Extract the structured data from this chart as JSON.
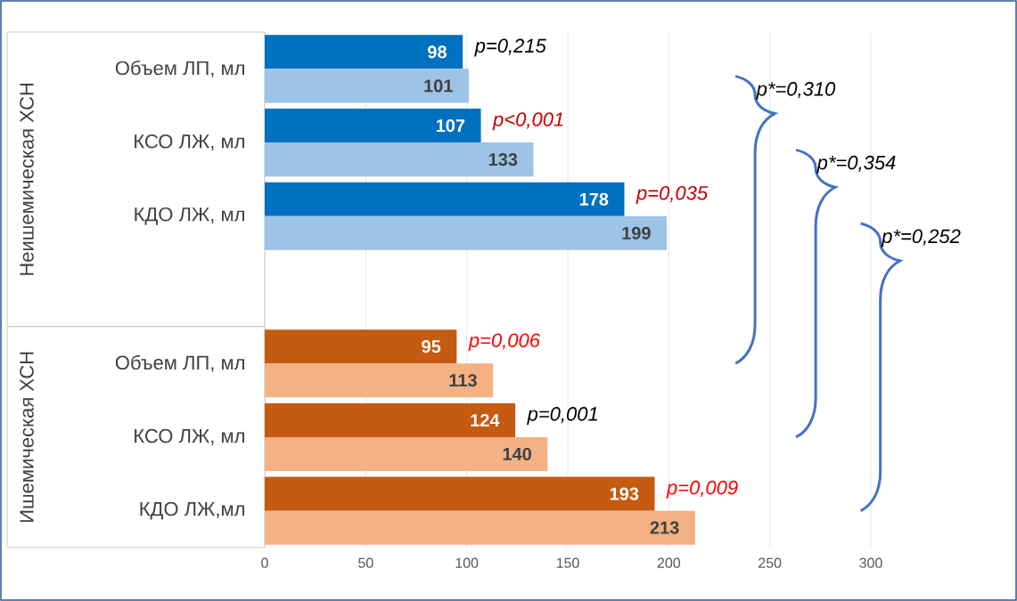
{
  "chart_data": {
    "type": "bar",
    "orientation": "horizontal",
    "categories": [
      "Объем ЛП, мл",
      "КСО ЛЖ, мл",
      "КДО ЛЖ, мл",
      null,
      "Объем ЛП, мл",
      "КСО ЛЖ, мл",
      "КДО ЛЖ,мл"
    ],
    "series": [
      {
        "colors": [
          "#0070c0",
          "#0070c0",
          "#0070c0",
          null,
          "#c55a11",
          "#c55a11",
          "#c55a11"
        ],
        "values": [
          98,
          107,
          178,
          null,
          95,
          124,
          193
        ]
      },
      {
        "colors": [
          "#9dc3e6",
          "#9dc3e6",
          "#9dc3e6",
          null,
          "#f4b183",
          "#f4b183",
          "#f4b183"
        ],
        "values": [
          101,
          133,
          199,
          null,
          113,
          140,
          213
        ]
      }
    ],
    "xlim": [
      0,
      300
    ],
    "xticks": [
      0,
      50,
      100,
      150,
      200,
      250,
      300
    ],
    "grid": "x",
    "data_labels": true,
    "annotations": [
      "Неишемическая ХСН",
      "Ишемическая ХСН",
      "p=0,215",
      "p<0,001",
      "p=0,035",
      "p=0,006",
      "p=0,001",
      "p=0,009",
      "p*=0,310",
      "p*=0,354",
      "p*=0,252"
    ]
  }
}
